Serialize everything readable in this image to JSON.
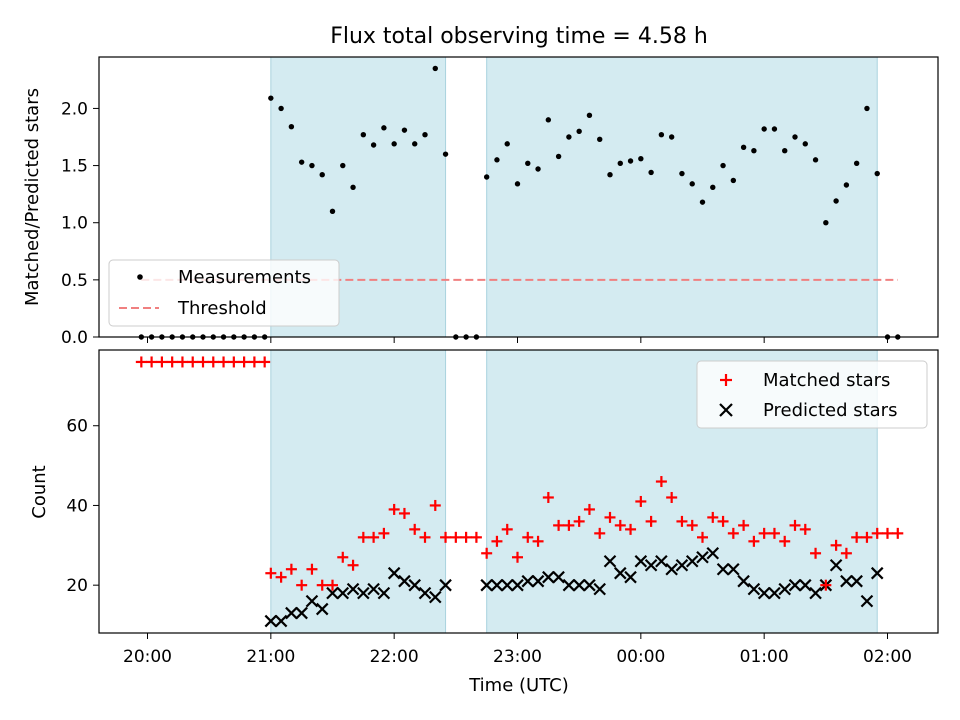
{
  "chart_data": [
    {
      "type": "scatter",
      "title": "Flux total observing time = 4.58 h",
      "ylabel": "Matched/Predicted stars",
      "xlabel": "",
      "ylim": [
        0,
        2.45
      ],
      "yticks": [
        "0.0",
        "0.5",
        "1.0",
        "1.5",
        "2.0"
      ],
      "threshold": 0.5,
      "legend": {
        "position": "lower-left",
        "entries": [
          "Measurements",
          "Threshold"
        ]
      },
      "shaded_intervals": [
        [
          "21:00",
          "22:25"
        ],
        [
          "22:45",
          "01:55"
        ]
      ],
      "series": [
        {
          "name": "Measurements",
          "points": [
            [
              "19:57",
              0
            ],
            [
              "20:02",
              0
            ],
            [
              "20:07",
              0
            ],
            [
              "20:12",
              0
            ],
            [
              "20:17",
              0
            ],
            [
              "20:22",
              0
            ],
            [
              "20:27",
              0
            ],
            [
              "20:32",
              0
            ],
            [
              "20:37",
              0
            ],
            [
              "20:42",
              0
            ],
            [
              "20:47",
              0
            ],
            [
              "20:52",
              0
            ],
            [
              "20:57",
              0
            ],
            [
              "21:00",
              2.09
            ],
            [
              "21:05",
              2.0
            ],
            [
              "21:10",
              1.84
            ],
            [
              "21:15",
              1.53
            ],
            [
              "21:20",
              1.5
            ],
            [
              "21:25",
              1.42
            ],
            [
              "21:30",
              1.1
            ],
            [
              "21:35",
              1.5
            ],
            [
              "21:40",
              1.31
            ],
            [
              "21:45",
              1.77
            ],
            [
              "21:50",
              1.68
            ],
            [
              "21:55",
              1.83
            ],
            [
              "22:00",
              1.69
            ],
            [
              "22:05",
              1.81
            ],
            [
              "22:10",
              1.69
            ],
            [
              "22:15",
              1.77
            ],
            [
              "22:20",
              2.35
            ],
            [
              "22:25",
              1.6
            ],
            [
              "22:30",
              0
            ],
            [
              "22:35",
              0
            ],
            [
              "22:40",
              0
            ],
            [
              "22:45",
              1.4
            ],
            [
              "22:50",
              1.55
            ],
            [
              "22:55",
              1.69
            ],
            [
              "23:00",
              1.34
            ],
            [
              "23:05",
              1.52
            ],
            [
              "23:10",
              1.47
            ],
            [
              "23:15",
              1.9
            ],
            [
              "23:20",
              1.58
            ],
            [
              "23:25",
              1.75
            ],
            [
              "23:30",
              1.8
            ],
            [
              "23:35",
              1.94
            ],
            [
              "23:40",
              1.73
            ],
            [
              "23:45",
              1.42
            ],
            [
              "23:50",
              1.52
            ],
            [
              "23:55",
              1.54
            ],
            [
              "00:00",
              1.56
            ],
            [
              "00:05",
              1.44
            ],
            [
              "00:10",
              1.77
            ],
            [
              "00:15",
              1.75
            ],
            [
              "00:20",
              1.43
            ],
            [
              "00:25",
              1.34
            ],
            [
              "00:30",
              1.18
            ],
            [
              "00:35",
              1.31
            ],
            [
              "00:40",
              1.5
            ],
            [
              "00:45",
              1.37
            ],
            [
              "00:50",
              1.66
            ],
            [
              "00:55",
              1.63
            ],
            [
              "01:00",
              1.82
            ],
            [
              "01:05",
              1.82
            ],
            [
              "01:10",
              1.63
            ],
            [
              "01:15",
              1.75
            ],
            [
              "01:20",
              1.69
            ],
            [
              "01:25",
              1.55
            ],
            [
              "01:30",
              1.0
            ],
            [
              "01:35",
              1.19
            ],
            [
              "01:40",
              1.33
            ],
            [
              "01:45",
              1.52
            ],
            [
              "01:50",
              2.0
            ],
            [
              "01:55",
              1.43
            ],
            [
              "02:00",
              0
            ],
            [
              "02:05",
              0
            ]
          ]
        }
      ]
    },
    {
      "type": "scatter",
      "xlabel": "Time (UTC)",
      "ylabel": "Count",
      "ylim": [
        8,
        79
      ],
      "yticks": [
        "20",
        "40",
        "60"
      ],
      "xticks": [
        "20:00",
        "21:00",
        "22:00",
        "23:00",
        "00:00",
        "01:00",
        "02:00"
      ],
      "legend": {
        "position": "upper-right",
        "entries": [
          "Matched stars",
          "Predicted stars"
        ]
      },
      "shaded_intervals": [
        [
          "21:00",
          "22:25"
        ],
        [
          "22:45",
          "01:55"
        ]
      ],
      "series": [
        {
          "name": "Matched stars",
          "points": [
            [
              "19:57",
              76
            ],
            [
              "20:02",
              76
            ],
            [
              "20:07",
              76
            ],
            [
              "20:12",
              76
            ],
            [
              "20:17",
              76
            ],
            [
              "20:22",
              76
            ],
            [
              "20:27",
              76
            ],
            [
              "20:32",
              76
            ],
            [
              "20:37",
              76
            ],
            [
              "20:42",
              76
            ],
            [
              "20:47",
              76
            ],
            [
              "20:52",
              76
            ],
            [
              "20:57",
              76
            ],
            [
              "21:00",
              23
            ],
            [
              "21:05",
              22
            ],
            [
              "21:10",
              24
            ],
            [
              "21:15",
              20
            ],
            [
              "21:20",
              24
            ],
            [
              "21:25",
              20
            ],
            [
              "21:30",
              20
            ],
            [
              "21:35",
              27
            ],
            [
              "21:40",
              25
            ],
            [
              "21:45",
              32
            ],
            [
              "21:50",
              32
            ],
            [
              "21:55",
              33
            ],
            [
              "22:00",
              39
            ],
            [
              "22:05",
              38
            ],
            [
              "22:10",
              34
            ],
            [
              "22:15",
              32
            ],
            [
              "22:20",
              40
            ],
            [
              "22:25",
              32
            ],
            [
              "22:30",
              32
            ],
            [
              "22:35",
              32
            ],
            [
              "22:40",
              32
            ],
            [
              "22:45",
              28
            ],
            [
              "22:50",
              31
            ],
            [
              "22:55",
              34
            ],
            [
              "23:00",
              27
            ],
            [
              "23:05",
              32
            ],
            [
              "23:10",
              31
            ],
            [
              "23:15",
              42
            ],
            [
              "23:20",
              35
            ],
            [
              "23:25",
              35
            ],
            [
              "23:30",
              36
            ],
            [
              "23:35",
              39
            ],
            [
              "23:40",
              33
            ],
            [
              "23:45",
              37
            ],
            [
              "23:50",
              35
            ],
            [
              "23:55",
              34
            ],
            [
              "00:00",
              41
            ],
            [
              "00:05",
              36
            ],
            [
              "00:10",
              46
            ],
            [
              "00:15",
              42
            ],
            [
              "00:20",
              36
            ],
            [
              "00:25",
              35
            ],
            [
              "00:30",
              32
            ],
            [
              "00:35",
              37
            ],
            [
              "00:40",
              36
            ],
            [
              "00:45",
              33
            ],
            [
              "00:50",
              35
            ],
            [
              "00:55",
              31
            ],
            [
              "01:00",
              33
            ],
            [
              "01:05",
              33
            ],
            [
              "01:10",
              31
            ],
            [
              "01:15",
              35
            ],
            [
              "01:20",
              34
            ],
            [
              "01:25",
              28
            ],
            [
              "01:30",
              20
            ],
            [
              "01:35",
              30
            ],
            [
              "01:40",
              28
            ],
            [
              "01:45",
              32
            ],
            [
              "01:50",
              32
            ],
            [
              "01:55",
              33
            ],
            [
              "02:00",
              33
            ],
            [
              "02:05",
              33
            ]
          ]
        },
        {
          "name": "Predicted stars",
          "points": [
            [
              "21:00",
              11
            ],
            [
              "21:05",
              11
            ],
            [
              "21:10",
              13
            ],
            [
              "21:15",
              13
            ],
            [
              "21:20",
              16
            ],
            [
              "21:25",
              14
            ],
            [
              "21:30",
              18
            ],
            [
              "21:35",
              18
            ],
            [
              "21:40",
              19
            ],
            [
              "21:45",
              18
            ],
            [
              "21:50",
              19
            ],
            [
              "21:55",
              18
            ],
            [
              "22:00",
              23
            ],
            [
              "22:05",
              21
            ],
            [
              "22:10",
              20
            ],
            [
              "22:15",
              18
            ],
            [
              "22:20",
              17
            ],
            [
              "22:25",
              20
            ],
            [
              "22:45",
              20
            ],
            [
              "22:50",
              20
            ],
            [
              "22:55",
              20
            ],
            [
              "23:00",
              20
            ],
            [
              "23:05",
              21
            ],
            [
              "23:10",
              21
            ],
            [
              "23:15",
              22
            ],
            [
              "23:20",
              22
            ],
            [
              "23:25",
              20
            ],
            [
              "23:30",
              20
            ],
            [
              "23:35",
              20
            ],
            [
              "23:40",
              19
            ],
            [
              "23:45",
              26
            ],
            [
              "23:50",
              23
            ],
            [
              "23:55",
              22
            ],
            [
              "00:00",
              26
            ],
            [
              "00:05",
              25
            ],
            [
              "00:10",
              26
            ],
            [
              "00:15",
              24
            ],
            [
              "00:20",
              25
            ],
            [
              "00:25",
              26
            ],
            [
              "00:30",
              27
            ],
            [
              "00:35",
              28
            ],
            [
              "00:40",
              24
            ],
            [
              "00:45",
              24
            ],
            [
              "00:50",
              21
            ],
            [
              "00:55",
              19
            ],
            [
              "01:00",
              18
            ],
            [
              "01:05",
              18
            ],
            [
              "01:10",
              19
            ],
            [
              "01:15",
              20
            ],
            [
              "01:20",
              20
            ],
            [
              "01:25",
              18
            ],
            [
              "01:30",
              20
            ],
            [
              "01:35",
              25
            ],
            [
              "01:40",
              21
            ],
            [
              "01:45",
              21
            ],
            [
              "01:50",
              16
            ],
            [
              "01:55",
              23
            ]
          ]
        }
      ]
    }
  ],
  "colors": {
    "shade": "#d4ebf1",
    "shade_edge": "#a9d3de",
    "measurement": "#000000",
    "threshold": "#f08080",
    "matched": "#ff0000",
    "predicted": "#000000"
  }
}
